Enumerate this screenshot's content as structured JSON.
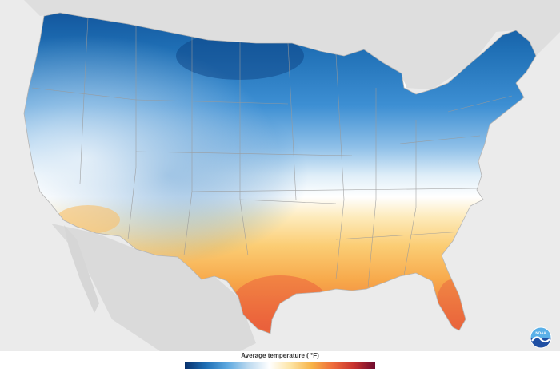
{
  "legend": {
    "title": "Average temperature",
    "unit": "( °F)",
    "colors": [
      "#08306b",
      "#1f6fb5",
      "#5ca8e0",
      "#bcd9ef",
      "#ffffff",
      "#fde4a4",
      "#f7b347",
      "#ee6b3b",
      "#c7322e",
      "#6d0a2e"
    ]
  },
  "map": {
    "background": "#ebebeb",
    "land_outside": "#dcdcdc",
    "water": "#ffffff",
    "state_lines": "#9a9a9a"
  },
  "logo": {
    "icon": "noaa-logo",
    "text": "NOAA"
  }
}
